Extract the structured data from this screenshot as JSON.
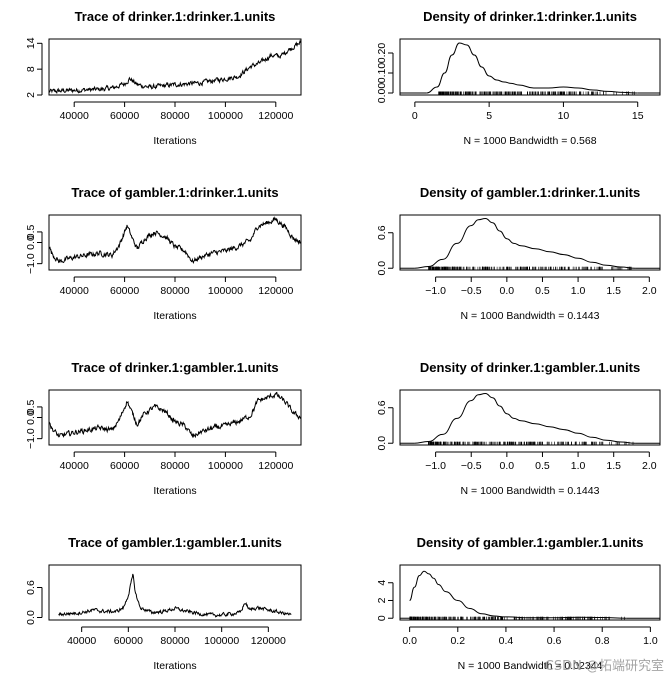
{
  "watermark": "CSDN @拓端研究室",
  "chart_data": [
    {
      "id": "trace-1",
      "type": "line",
      "kind": "trace",
      "title": "Trace of drinker.1:drinker.1.units",
      "xlabel": "Iterations",
      "ylabel": "",
      "xlim": [
        30000,
        130000
      ],
      "ylim": [
        2,
        15
      ],
      "xticks": [
        40000,
        60000,
        80000,
        100000,
        120000
      ],
      "xtick_labels": [
        "40000",
        "60000",
        "80000",
        "100000",
        "120000"
      ],
      "yticks": [
        2,
        8,
        14
      ],
      "ytick_labels": [
        "2",
        "8",
        "14"
      ],
      "trace_anchors": [
        [
          30000,
          2.8
        ],
        [
          40000,
          3.1
        ],
        [
          50000,
          3.3
        ],
        [
          55000,
          3.6
        ],
        [
          60000,
          4.6
        ],
        [
          62000,
          5.8
        ],
        [
          65000,
          4.4
        ],
        [
          70000,
          3.8
        ],
        [
          80000,
          4.4
        ],
        [
          90000,
          4.8
        ],
        [
          100000,
          5.8
        ],
        [
          105000,
          6.3
        ],
        [
          110000,
          8.6
        ],
        [
          114000,
          9.5
        ],
        [
          118000,
          11.2
        ],
        [
          122000,
          11.0
        ],
        [
          125000,
          12.5
        ],
        [
          130000,
          14.2
        ]
      ],
      "noise": 0.55
    },
    {
      "id": "density-1",
      "type": "area",
      "kind": "density",
      "title": "Density of drinker.1:drinker.1.units",
      "xlabel": "N = 1000   Bandwidth = 0.568",
      "ylabel": "",
      "xlim": [
        -1,
        16.5
      ],
      "ylim": [
        -0.01,
        0.27
      ],
      "xticks": [
        0,
        5,
        10,
        15
      ],
      "xtick_labels": [
        "0",
        "5",
        "10",
        "15"
      ],
      "yticks": [
        0.0,
        0.1,
        0.2
      ],
      "ytick_labels": [
        "0.00",
        "0.10",
        "0.20"
      ],
      "x": [
        0.8,
        1.5,
        2.0,
        2.5,
        3.0,
        3.5,
        4.0,
        4.5,
        5.0,
        5.5,
        6.0,
        6.5,
        7.0,
        8.0,
        9.0,
        10.0,
        11.0,
        12.0,
        13.0,
        14.0,
        15.0
      ],
      "y": [
        0.0,
        0.03,
        0.1,
        0.19,
        0.25,
        0.24,
        0.19,
        0.13,
        0.085,
        0.065,
        0.055,
        0.048,
        0.04,
        0.025,
        0.025,
        0.03,
        0.025,
        0.015,
        0.008,
        0.003,
        0.0
      ],
      "rug_range": [
        1.6,
        14.8
      ]
    },
    {
      "id": "trace-2",
      "type": "line",
      "kind": "trace",
      "title": "Trace of gambler.1:drinker.1.units",
      "xlabel": "Iterations",
      "ylabel": "",
      "xlim": [
        30000,
        130000
      ],
      "ylim": [
        -1.3,
        1.3
      ],
      "xticks": [
        40000,
        60000,
        80000,
        100000,
        120000
      ],
      "xtick_labels": [
        "40000",
        "60000",
        "80000",
        "100000",
        "120000"
      ],
      "yticks": [
        -1.0,
        0.0,
        0.5
      ],
      "ytick_labels": [
        "−1.0",
        "0.0",
        "0.5"
      ],
      "trace_anchors": [
        [
          30000,
          -0.1
        ],
        [
          31000,
          -0.5
        ],
        [
          34000,
          -0.9
        ],
        [
          40000,
          -0.7
        ],
        [
          50000,
          -0.5
        ],
        [
          55000,
          -0.6
        ],
        [
          58000,
          -0.1
        ],
        [
          61000,
          0.8
        ],
        [
          63000,
          0.2
        ],
        [
          65000,
          -0.3
        ],
        [
          68000,
          0.2
        ],
        [
          72000,
          0.5
        ],
        [
          76000,
          0.3
        ],
        [
          80000,
          -0.2
        ],
        [
          84000,
          -0.4
        ],
        [
          87000,
          -0.9
        ],
        [
          90000,
          -0.7
        ],
        [
          95000,
          -0.5
        ],
        [
          100000,
          -0.4
        ],
        [
          105000,
          -0.2
        ],
        [
          110000,
          0.1
        ],
        [
          113000,
          0.8
        ],
        [
          116000,
          0.9
        ],
        [
          120000,
          1.1
        ],
        [
          124000,
          0.7
        ],
        [
          127000,
          0.2
        ],
        [
          130000,
          0.0
        ]
      ],
      "noise": 0.12
    },
    {
      "id": "density-2",
      "type": "area",
      "kind": "density",
      "title": "Density of gambler.1:drinker.1.units",
      "xlabel": "N = 1000   Bandwidth = 0.1443",
      "ylabel": "",
      "xlim": [
        -1.5,
        2.15
      ],
      "ylim": [
        -0.03,
        0.9
      ],
      "xticks": [
        -1.0,
        -0.5,
        0.0,
        0.5,
        1.0,
        1.5,
        2.0
      ],
      "xtick_labels": [
        "−1.0",
        "−0.5",
        "0.0",
        "0.5",
        "1.0",
        "1.5",
        "2.0"
      ],
      "yticks": [
        0.0,
        0.6
      ],
      "ytick_labels": [
        "0.0",
        "0.6"
      ],
      "x": [
        -1.3,
        -1.1,
        -0.9,
        -0.7,
        -0.5,
        -0.4,
        -0.3,
        -0.2,
        -0.1,
        0.0,
        0.1,
        0.2,
        0.4,
        0.6,
        0.8,
        1.0,
        1.2,
        1.4,
        1.6,
        1.8
      ],
      "y": [
        0.0,
        0.03,
        0.15,
        0.42,
        0.72,
        0.82,
        0.84,
        0.77,
        0.63,
        0.5,
        0.42,
        0.38,
        0.33,
        0.28,
        0.23,
        0.17,
        0.1,
        0.05,
        0.02,
        0.0
      ],
      "rug_range": [
        -1.1,
        1.8
      ]
    },
    {
      "id": "trace-3",
      "type": "line",
      "kind": "trace",
      "title": "Trace of drinker.1:gambler.1.units",
      "xlabel": "Iterations",
      "ylabel": "",
      "xlim": [
        30000,
        130000
      ],
      "ylim": [
        -1.3,
        1.3
      ],
      "xticks": [
        40000,
        60000,
        80000,
        100000,
        120000
      ],
      "xtick_labels": [
        "40000",
        "60000",
        "80000",
        "100000",
        "120000"
      ],
      "yticks": [
        -1.0,
        0.0,
        0.5
      ],
      "ytick_labels": [
        "−1.0",
        "0.0",
        "0.5"
      ],
      "trace_anchors": [
        [
          30000,
          -0.1
        ],
        [
          31000,
          -0.5
        ],
        [
          34000,
          -0.9
        ],
        [
          40000,
          -0.7
        ],
        [
          50000,
          -0.5
        ],
        [
          55000,
          -0.6
        ],
        [
          58000,
          -0.1
        ],
        [
          61000,
          0.8
        ],
        [
          63000,
          0.2
        ],
        [
          65000,
          -0.3
        ],
        [
          68000,
          0.2
        ],
        [
          72000,
          0.5
        ],
        [
          76000,
          0.3
        ],
        [
          80000,
          -0.2
        ],
        [
          84000,
          -0.4
        ],
        [
          87000,
          -0.9
        ],
        [
          90000,
          -0.7
        ],
        [
          95000,
          -0.5
        ],
        [
          100000,
          -0.4
        ],
        [
          105000,
          -0.2
        ],
        [
          110000,
          0.1
        ],
        [
          113000,
          0.8
        ],
        [
          116000,
          0.9
        ],
        [
          120000,
          1.1
        ],
        [
          124000,
          0.7
        ],
        [
          127000,
          0.2
        ],
        [
          130000,
          0.0
        ]
      ],
      "noise": 0.12
    },
    {
      "id": "density-3",
      "type": "area",
      "kind": "density",
      "title": "Density of drinker.1:gambler.1.units",
      "xlabel": "N = 1000   Bandwidth = 0.1443",
      "ylabel": "",
      "xlim": [
        -1.5,
        2.15
      ],
      "ylim": [
        -0.03,
        0.9
      ],
      "xticks": [
        -1.0,
        -0.5,
        0.0,
        0.5,
        1.0,
        1.5,
        2.0
      ],
      "xtick_labels": [
        "−1.0",
        "−0.5",
        "0.0",
        "0.5",
        "1.0",
        "1.5",
        "2.0"
      ],
      "yticks": [
        0.0,
        0.6
      ],
      "ytick_labels": [
        "0.0",
        "0.6"
      ],
      "x": [
        -1.3,
        -1.1,
        -0.9,
        -0.7,
        -0.5,
        -0.4,
        -0.3,
        -0.2,
        -0.1,
        0.0,
        0.1,
        0.2,
        0.4,
        0.6,
        0.8,
        1.0,
        1.2,
        1.4,
        1.6,
        1.8
      ],
      "y": [
        0.0,
        0.03,
        0.15,
        0.42,
        0.72,
        0.82,
        0.84,
        0.77,
        0.63,
        0.5,
        0.42,
        0.38,
        0.33,
        0.28,
        0.23,
        0.17,
        0.1,
        0.05,
        0.02,
        0.0
      ],
      "rug_range": [
        -1.1,
        1.8
      ]
    },
    {
      "id": "trace-4",
      "type": "line",
      "kind": "trace",
      "title": "Trace of gambler.1:gambler.1.units",
      "xlabel": "Iterations",
      "ylabel": "",
      "xlim": [
        26000,
        134000
      ],
      "ylim": [
        -0.05,
        1.05
      ],
      "xticks": [
        40000,
        60000,
        80000,
        100000,
        120000
      ],
      "xtick_labels": [
        "40000",
        "60000",
        "80000",
        "100000",
        "120000"
      ],
      "yticks": [
        0.0,
        0.6
      ],
      "ytick_labels": [
        "0.0",
        "0.6"
      ],
      "trace_anchors": [
        [
          30000,
          0.06
        ],
        [
          35000,
          0.08
        ],
        [
          40000,
          0.1
        ],
        [
          45000,
          0.15
        ],
        [
          50000,
          0.12
        ],
        [
          55000,
          0.12
        ],
        [
          58000,
          0.2
        ],
        [
          60000,
          0.45
        ],
        [
          62000,
          0.85
        ],
        [
          63000,
          0.5
        ],
        [
          65000,
          0.2
        ],
        [
          70000,
          0.1
        ],
        [
          75000,
          0.12
        ],
        [
          80000,
          0.18
        ],
        [
          85000,
          0.12
        ],
        [
          90000,
          0.08
        ],
        [
          95000,
          0.05
        ],
        [
          100000,
          0.05
        ],
        [
          105000,
          0.08
        ],
        [
          108000,
          0.1
        ],
        [
          110000,
          0.3
        ],
        [
          112000,
          0.15
        ],
        [
          115000,
          0.2
        ],
        [
          120000,
          0.15
        ],
        [
          125000,
          0.1
        ],
        [
          130000,
          0.05
        ]
      ],
      "noise": 0.035
    },
    {
      "id": "density-4",
      "type": "area",
      "kind": "density",
      "title": "Density of gambler.1:gambler.1.units",
      "xlabel": "N = 1000   Bandwidth = 0.02344",
      "ylabel": "",
      "xlim": [
        -0.04,
        1.04
      ],
      "ylim": [
        -0.2,
        6.0
      ],
      "xticks": [
        0.0,
        0.2,
        0.4,
        0.6,
        0.8,
        1.0
      ],
      "xtick_labels": [
        "0.0",
        "0.2",
        "0.4",
        "0.6",
        "0.8",
        "1.0"
      ],
      "yticks": [
        0,
        2,
        4
      ],
      "ytick_labels": [
        "0",
        "2",
        "4"
      ],
      "x": [
        0.0,
        0.02,
        0.04,
        0.06,
        0.08,
        0.1,
        0.12,
        0.15,
        0.2,
        0.25,
        0.3,
        0.35,
        0.4,
        0.5,
        0.6,
        0.7,
        0.8,
        0.9
      ],
      "y": [
        2.0,
        3.5,
        4.8,
        5.3,
        5.0,
        4.5,
        3.8,
        3.0,
        2.0,
        1.1,
        0.5,
        0.25,
        0.15,
        0.05,
        0.05,
        0.1,
        0.08,
        0.0
      ],
      "rug_range": [
        0.0,
        0.9
      ]
    }
  ]
}
